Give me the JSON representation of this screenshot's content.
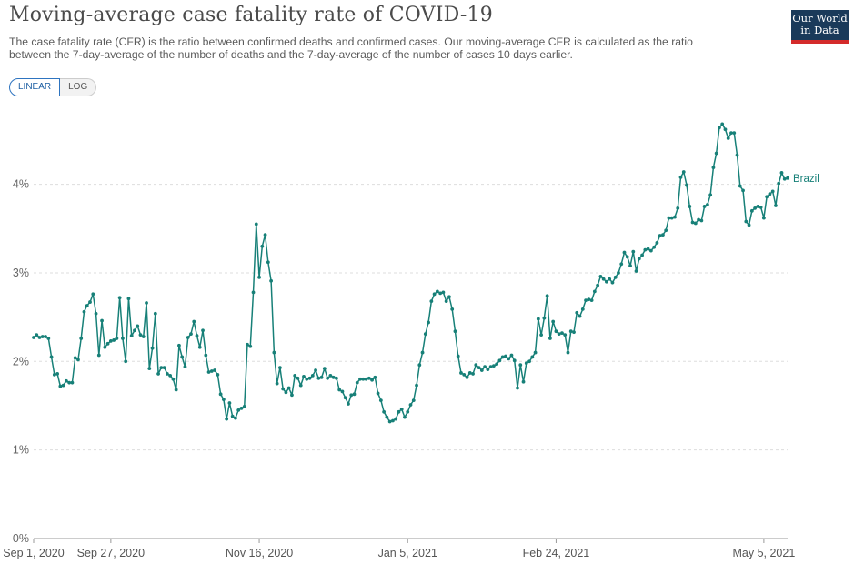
{
  "header": {
    "title": "Moving-average case fatality rate of COVID-19",
    "subtitle": "The case fatality rate (CFR) is the ratio between confirmed deaths and confirmed cases. Our moving-average CFR is calculated as the ratio between the 7-day-average of the number of deaths and the 7-day-average of the number of cases 10 days earlier.",
    "logo_line1": "Our World",
    "logo_line2": "in Data"
  },
  "controls": {
    "linear_label": "LINEAR",
    "log_label": "LOG"
  },
  "colors": {
    "series": "#178078",
    "logo_bg": "#1a3a5a",
    "logo_bar": "#d42b2b"
  },
  "chart_data": {
    "type": "line",
    "x_start": "2020-09-01",
    "x_end": "2021-05-05",
    "ylim": [
      0,
      4.9
    ],
    "y_ticks": [
      {
        "v": 0,
        "label": "0%"
      },
      {
        "v": 1,
        "label": "1%"
      },
      {
        "v": 2,
        "label": "2%"
      },
      {
        "v": 3,
        "label": "3%"
      },
      {
        "v": 4,
        "label": "4%"
      }
    ],
    "x_ticks": [
      {
        "label": "Sep 1, 2020",
        "day": 0
      },
      {
        "label": "Sep 27, 2020",
        "day": 26
      },
      {
        "label": "Nov 16, 2020",
        "day": 76
      },
      {
        "label": "Jan 5, 2021",
        "day": 126
      },
      {
        "label": "Feb 24, 2021",
        "day": 176
      },
      {
        "label": "May 5, 2021",
        "day": 246
      }
    ],
    "grid": "horizontal dashed",
    "series": [
      {
        "name": "Brazil",
        "values": [
          2.27,
          2.3,
          2.27,
          2.28,
          2.28,
          2.26,
          2.05,
          1.85,
          1.86,
          1.72,
          1.73,
          1.78,
          1.76,
          1.76,
          2.04,
          2.02,
          2.26,
          2.56,
          2.63,
          2.67,
          2.76,
          2.54,
          2.07,
          2.46,
          2.16,
          2.2,
          2.23,
          2.24,
          2.26,
          2.72,
          2.26,
          2.0,
          2.71,
          2.29,
          2.35,
          2.4,
          2.3,
          2.28,
          2.66,
          1.92,
          2.15,
          2.54,
          1.86,
          1.93,
          1.93,
          1.86,
          1.84,
          1.8,
          1.68,
          2.18,
          2.05,
          1.94,
          2.27,
          2.31,
          2.45,
          2.29,
          2.16,
          2.35,
          2.07,
          1.88,
          1.89,
          1.9,
          1.85,
          1.63,
          1.57,
          1.35,
          1.53,
          1.38,
          1.36,
          1.45,
          1.47,
          1.49,
          2.19,
          2.17,
          2.78,
          3.55,
          2.95,
          3.3,
          3.43,
          3.12,
          2.91,
          2.1,
          1.75,
          1.93,
          1.69,
          1.65,
          1.7,
          1.62,
          1.84,
          1.81,
          1.73,
          1.83,
          1.8,
          1.81,
          1.84,
          1.9,
          1.81,
          1.82,
          1.92,
          1.81,
          1.84,
          1.82,
          1.81,
          1.68,
          1.66,
          1.59,
          1.52,
          1.62,
          1.63,
          1.76,
          1.8,
          1.8,
          1.8,
          1.81,
          1.79,
          1.82,
          1.64,
          1.56,
          1.43,
          1.37,
          1.32,
          1.33,
          1.35,
          1.43,
          1.46,
          1.37,
          1.43,
          1.51,
          1.56,
          1.73,
          1.96,
          2.1,
          2.31,
          2.44,
          2.68,
          2.76,
          2.79,
          2.77,
          2.78,
          2.68,
          2.73,
          2.59,
          2.34,
          2.06,
          1.87,
          1.85,
          1.82,
          1.87,
          1.86,
          1.96,
          1.93,
          1.9,
          1.94,
          1.91,
          1.94,
          1.95,
          1.97,
          2.01,
          2.05,
          2.06,
          2.03,
          2.07,
          2.01,
          1.7,
          1.96,
          1.77,
          1.98,
          2.0,
          2.05,
          2.1,
          2.48,
          2.3,
          2.49,
          2.74,
          2.26,
          2.45,
          2.34,
          2.31,
          2.32,
          2.3,
          2.1,
          2.34,
          2.33,
          2.55,
          2.51,
          2.59,
          2.69,
          2.7,
          2.69,
          2.79,
          2.86,
          2.96,
          2.93,
          2.9,
          2.93,
          2.89,
          2.95,
          3.0,
          3.1,
          3.23,
          3.18,
          3.08,
          3.24,
          3.02,
          3.16,
          3.2,
          3.26,
          3.27,
          3.25,
          3.29,
          3.34,
          3.42,
          3.43,
          3.48,
          3.62,
          3.62,
          3.63,
          3.73,
          4.08,
          4.14,
          3.99,
          3.75,
          3.57,
          3.56,
          3.6,
          3.59,
          3.75,
          3.77,
          3.88,
          4.19,
          4.35,
          4.64,
          4.68,
          4.62,
          4.52,
          4.58,
          4.58,
          4.33,
          3.98,
          3.93,
          3.58,
          3.54,
          3.7,
          3.73,
          3.75,
          3.74,
          3.62,
          3.86,
          3.89,
          3.92,
          3.76,
          4.01,
          4.13,
          4.06,
          4.07
        ]
      }
    ]
  }
}
